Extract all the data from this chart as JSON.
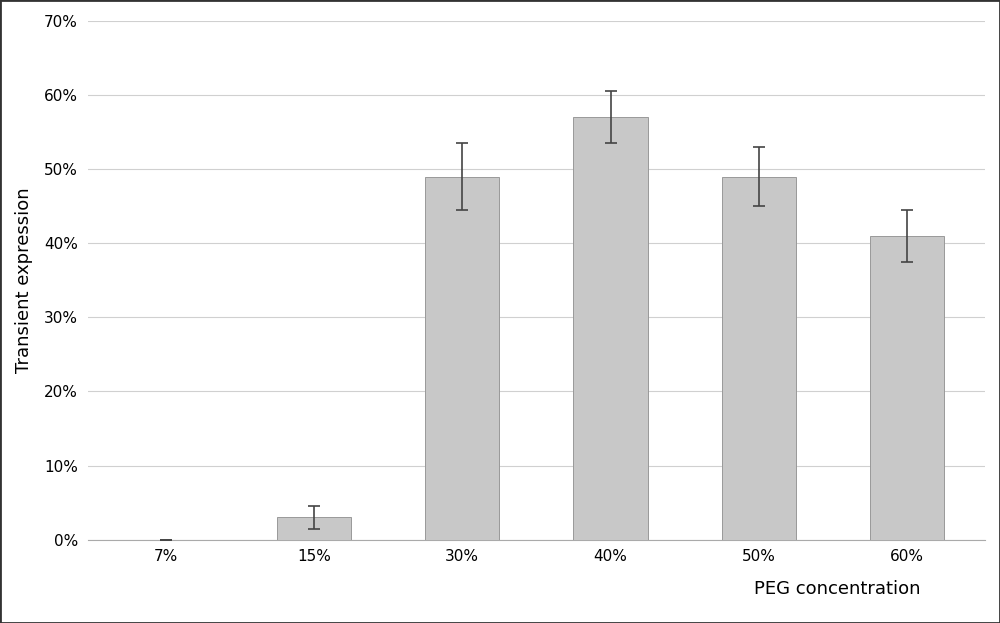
{
  "categories": [
    "7%",
    "15%",
    "30%",
    "40%",
    "50%",
    "60%"
  ],
  "values": [
    0.0,
    0.03,
    0.49,
    0.57,
    0.49,
    0.41
  ],
  "errors": [
    0.0,
    0.015,
    0.045,
    0.035,
    0.04,
    0.035
  ],
  "bar_color": "#c8c8c8",
  "bar_edgecolor": "#999999",
  "error_color": "#444444",
  "ylabel": "Transient expression",
  "xlabel": "PEG concentration",
  "ylim": [
    0,
    0.7
  ],
  "yticks": [
    0.0,
    0.1,
    0.2,
    0.3,
    0.4,
    0.5,
    0.6,
    0.7
  ],
  "background_color": "#ffffff",
  "grid_color": "#d0d0d0",
  "ylabel_fontsize": 13,
  "xlabel_fontsize": 13,
  "tick_fontsize": 11,
  "bar_width": 0.5,
  "figure_background": "#ffffff",
  "border_color": "#333333"
}
